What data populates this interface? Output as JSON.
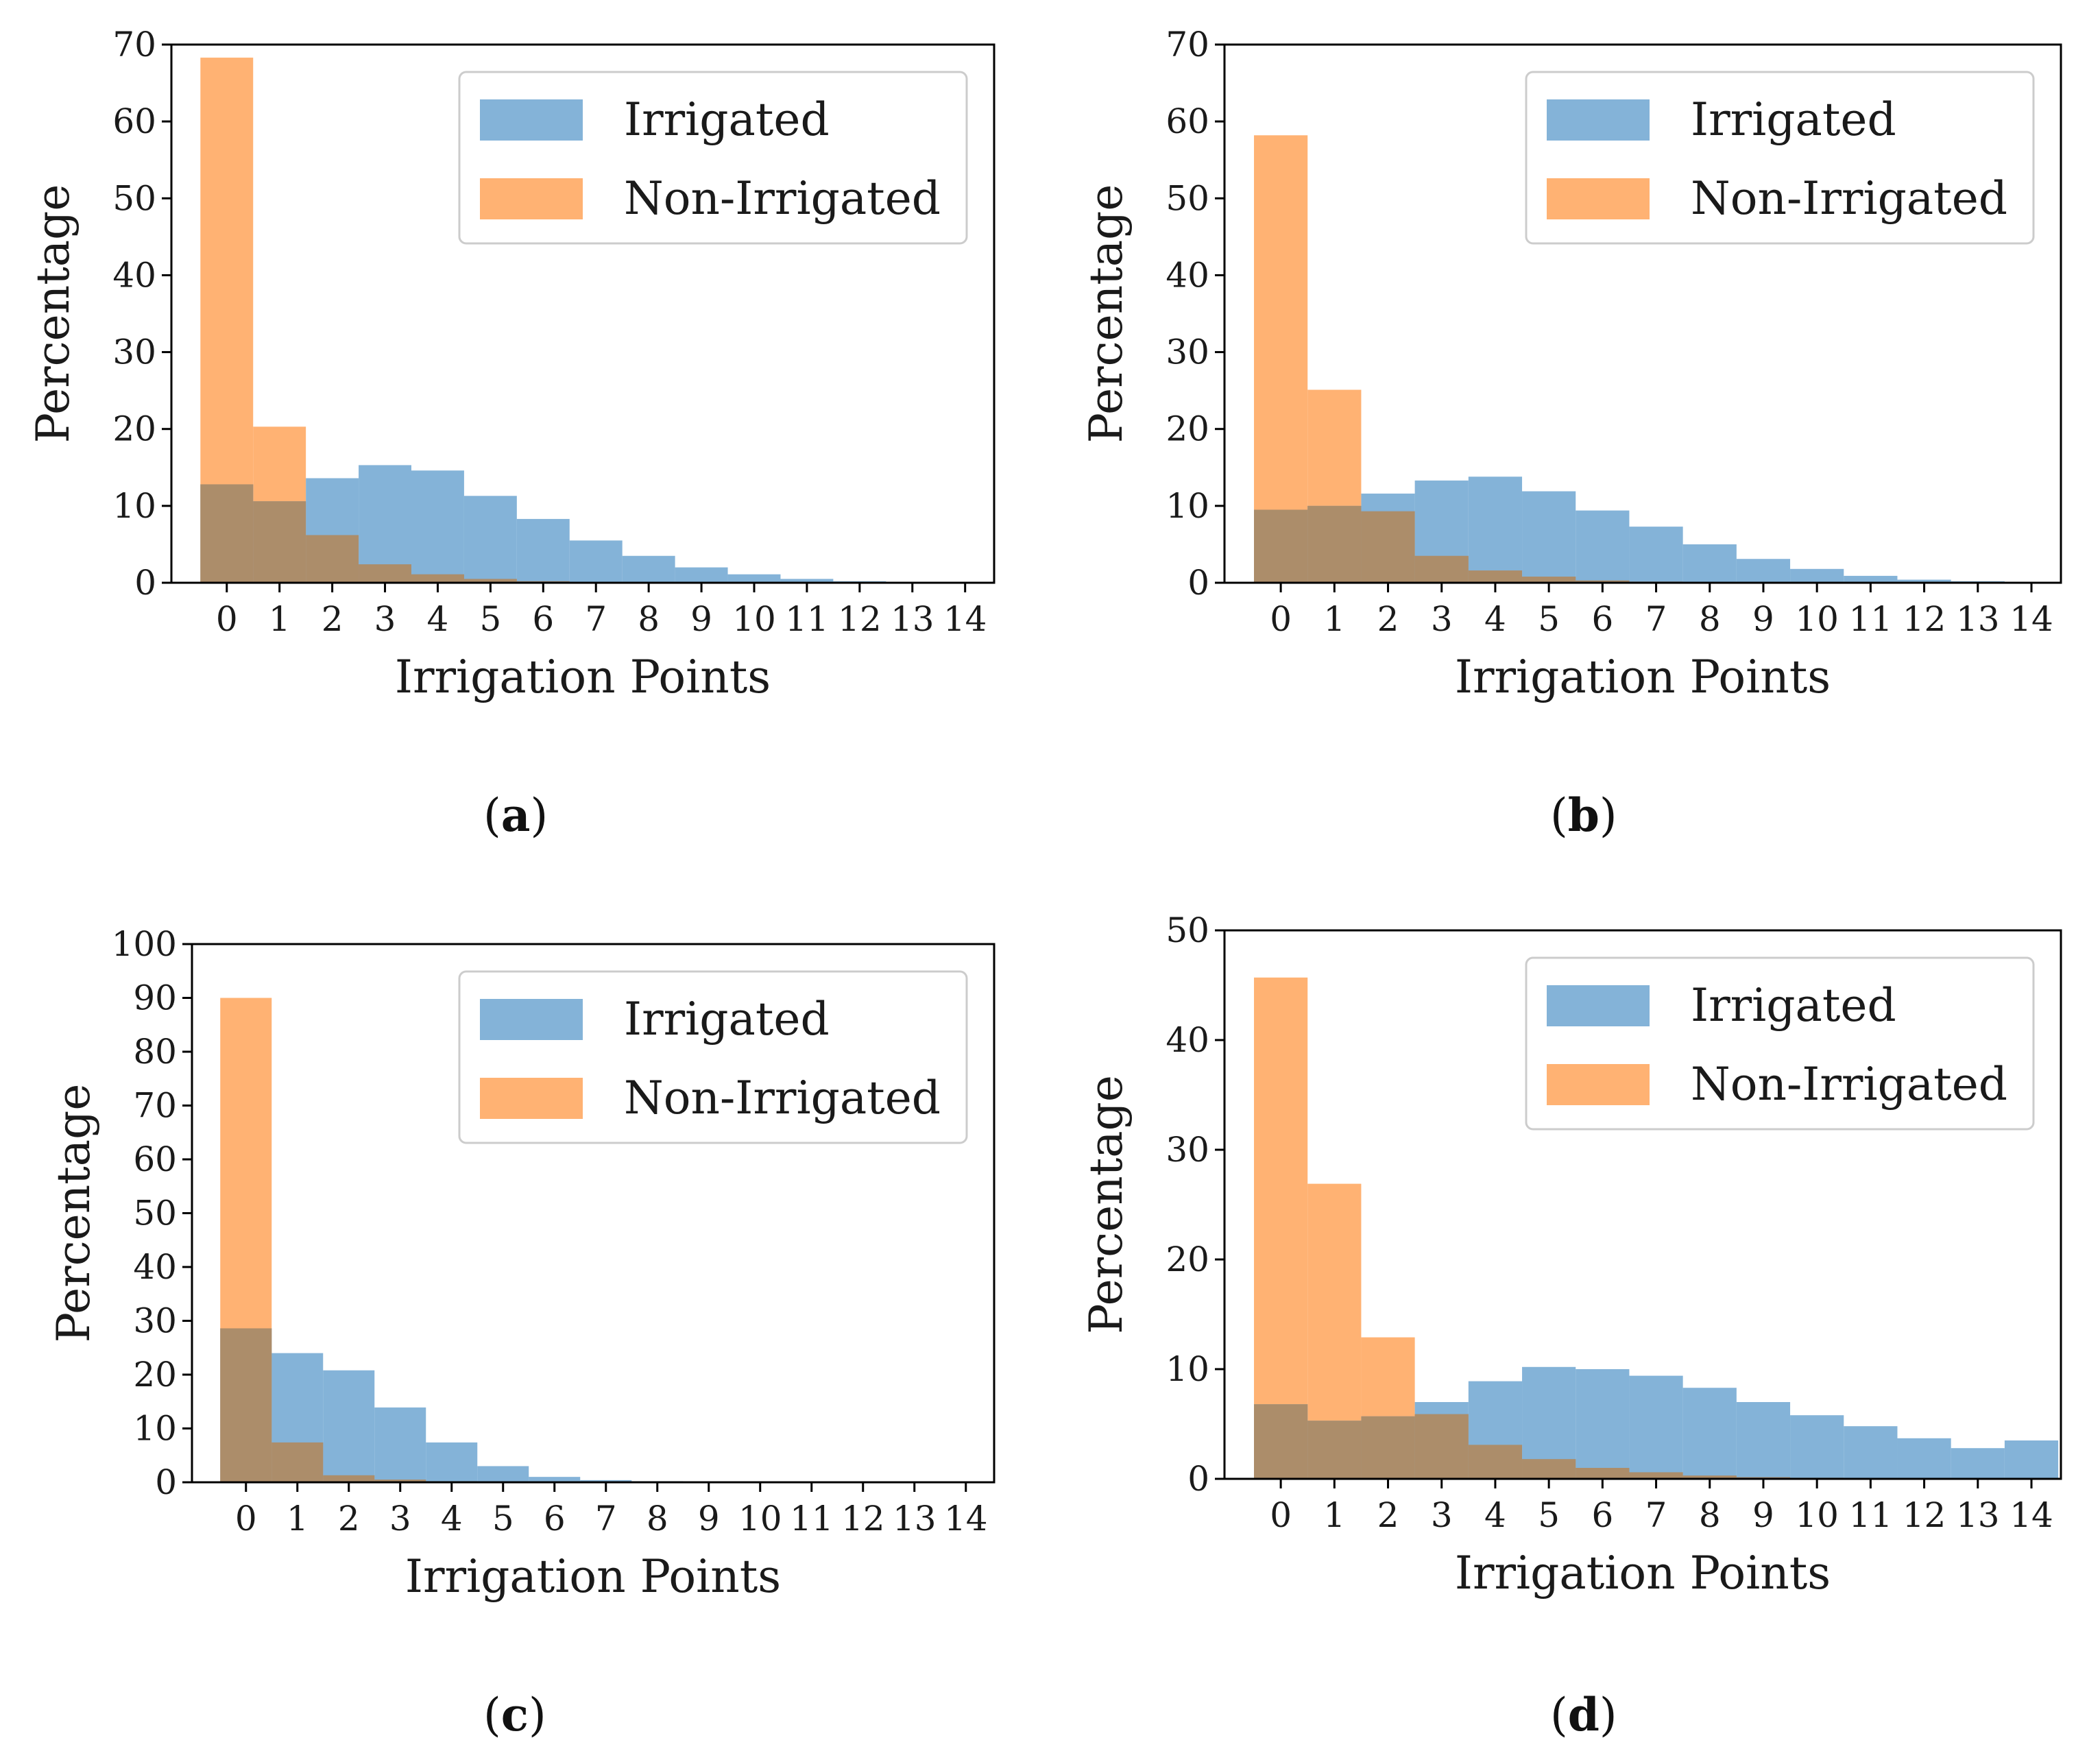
{
  "colors": {
    "irrigated": "#6fa6d1",
    "non_irrigated": "#ffa45a",
    "axis": "#000000"
  },
  "chart_data": [
    {
      "panel": "a",
      "type": "bar",
      "caption_letter": "a",
      "xlabel": "Irrigation Points",
      "ylabel": "Percentage",
      "ylim": [
        0,
        70
      ],
      "yticks": [
        "0",
        "10",
        "20",
        "30",
        "40",
        "50",
        "60",
        "70"
      ],
      "categories": [
        "0",
        "1",
        "2",
        "3",
        "4",
        "5",
        "6",
        "7",
        "8",
        "9",
        "10",
        "11",
        "12",
        "13",
        "14"
      ],
      "legend": {
        "position": "top-right",
        "entries": [
          "Irrigated",
          "Non-Irrigated"
        ]
      },
      "series": [
        {
          "name": "Irrigated",
          "values": [
            12.8,
            10.6,
            13.6,
            15.3,
            14.6,
            11.3,
            8.3,
            5.5,
            3.5,
            2.0,
            1.1,
            0.5,
            0.2,
            0.1,
            0.05
          ]
        },
        {
          "name": "Non-Irrigated",
          "values": [
            68.3,
            20.3,
            6.2,
            2.4,
            1.1,
            0.5,
            0.2,
            0.1,
            0.05,
            0.0,
            0.0,
            0.0,
            0.0,
            0.0,
            0.0
          ]
        }
      ]
    },
    {
      "panel": "b",
      "type": "bar",
      "caption_letter": "b",
      "xlabel": "Irrigation Points",
      "ylabel": "Percentage",
      "ylim": [
        0,
        70
      ],
      "yticks": [
        "0",
        "10",
        "20",
        "30",
        "40",
        "50",
        "60",
        "70"
      ],
      "categories": [
        "0",
        "1",
        "2",
        "3",
        "4",
        "5",
        "6",
        "7",
        "8",
        "9",
        "10",
        "11",
        "12",
        "13",
        "14"
      ],
      "legend": {
        "position": "top-right",
        "entries": [
          "Irrigated",
          "Non-Irrigated"
        ]
      },
      "series": [
        {
          "name": "Irrigated",
          "values": [
            9.5,
            10.0,
            11.6,
            13.3,
            13.8,
            11.9,
            9.4,
            7.3,
            5.0,
            3.1,
            1.8,
            0.9,
            0.4,
            0.2,
            0.1
          ]
        },
        {
          "name": "Non-Irrigated",
          "values": [
            58.2,
            25.1,
            9.3,
            3.5,
            1.6,
            0.8,
            0.3,
            0.15,
            0.05,
            0.0,
            0.0,
            0.0,
            0.0,
            0.0,
            0.0
          ]
        }
      ]
    },
    {
      "panel": "c",
      "type": "bar",
      "caption_letter": "c",
      "xlabel": "Irrigation Points",
      "ylabel": "Percentage",
      "ylim": [
        0,
        100
      ],
      "yticks": [
        "0",
        "10",
        "20",
        "30",
        "40",
        "50",
        "60",
        "70",
        "80",
        "90",
        "100"
      ],
      "categories": [
        "0",
        "1",
        "2",
        "3",
        "4",
        "5",
        "6",
        "7",
        "8",
        "9",
        "10",
        "11",
        "12",
        "13",
        "14"
      ],
      "legend": {
        "position": "top-right",
        "entries": [
          "Irrigated",
          "Non-Irrigated"
        ]
      },
      "series": [
        {
          "name": "Irrigated",
          "values": [
            28.6,
            24.0,
            20.8,
            13.9,
            7.4,
            3.0,
            1.0,
            0.4,
            0.2,
            0.1,
            0.05,
            0.0,
            0.0,
            0.0,
            0.0
          ]
        },
        {
          "name": "Non-Irrigated",
          "values": [
            90.0,
            7.4,
            1.3,
            0.5,
            0.2,
            0.1,
            0.05,
            0.0,
            0.0,
            0.0,
            0.0,
            0.0,
            0.0,
            0.0,
            0.0
          ]
        }
      ]
    },
    {
      "panel": "d",
      "type": "bar",
      "caption_letter": "d",
      "xlabel": "Irrigation Points",
      "ylabel": "Percentage",
      "ylim": [
        0,
        50
      ],
      "yticks": [
        "0",
        "10",
        "20",
        "30",
        "40",
        "50"
      ],
      "categories": [
        "0",
        "1",
        "2",
        "3",
        "4",
        "5",
        "6",
        "7",
        "8",
        "9",
        "10",
        "11",
        "12",
        "13",
        "14"
      ],
      "legend": {
        "position": "top-right",
        "entries": [
          "Irrigated",
          "Non-Irrigated"
        ]
      },
      "series": [
        {
          "name": "Irrigated",
          "values": [
            6.8,
            5.3,
            5.7,
            7.0,
            8.9,
            10.2,
            10.0,
            9.4,
            8.3,
            7.0,
            5.8,
            4.8,
            3.7,
            2.8,
            3.5
          ]
        },
        {
          "name": "Non-Irrigated",
          "values": [
            45.7,
            26.9,
            12.9,
            5.9,
            3.1,
            1.8,
            1.0,
            0.6,
            0.3,
            0.15,
            0.1,
            0.05,
            0.0,
            0.0,
            0.0
          ]
        }
      ]
    }
  ]
}
